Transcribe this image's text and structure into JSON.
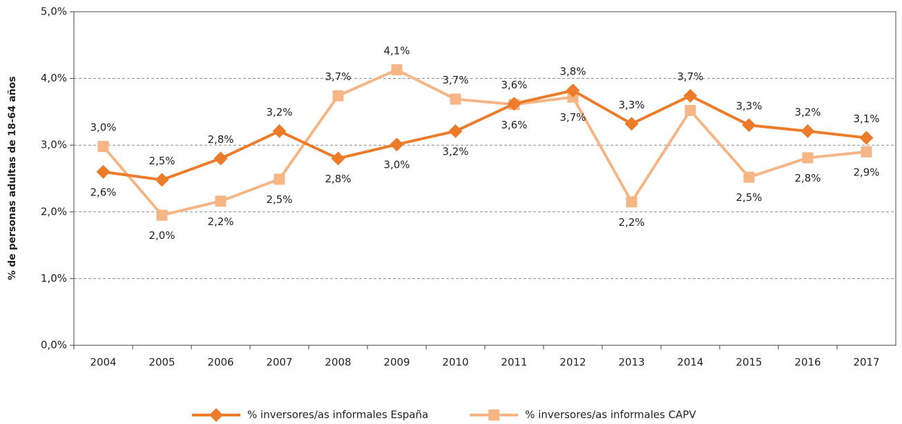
{
  "chart_data": {
    "type": "line",
    "y_label": "% de personas adultas de 18-64 años",
    "categories": [
      "2004",
      "2005",
      "2006",
      "2007",
      "2008",
      "2009",
      "2010",
      "2011",
      "2012",
      "2013",
      "2014",
      "2015",
      "2016",
      "2017"
    ],
    "series": [
      {
        "name": "% inversores/as informales España",
        "color": "#ec7b2a",
        "marker": "diamond",
        "values": [
          2.6,
          2.48,
          2.8,
          3.21,
          2.8,
          3.01,
          3.21,
          3.62,
          3.82,
          3.32,
          3.74,
          3.3,
          3.21,
          3.11
        ],
        "value_labels": [
          "2,6%",
          "2,5%",
          "2,8%",
          "3,2%",
          "2,8%",
          "3,0%",
          "3,2%",
          "3,6%",
          "3,8%",
          "3,3%",
          "3,7%",
          "3,3%",
          "3,2%",
          "3,1%"
        ]
      },
      {
        "name": "% inversores/as informales CAPV",
        "color": "#f6b585",
        "marker": "square",
        "values": [
          2.98,
          1.95,
          2.16,
          2.49,
          3.74,
          4.13,
          3.69,
          3.61,
          3.72,
          2.15,
          3.52,
          2.52,
          2.81,
          2.9
        ],
        "value_labels": [
          "3,0%",
          "2,0%",
          "2,2%",
          "2,5%",
          "3,7%",
          "4,1%",
          "3,7%",
          "3,6%",
          "3,7%",
          "2,2%",
          null,
          "2,5%",
          "2,8%",
          "2,9%"
        ]
      }
    ],
    "ylim": [
      0,
      5
    ],
    "yticks": [
      {
        "value": 0,
        "label": "0,0%"
      },
      {
        "value": 1,
        "label": "1,0%"
      },
      {
        "value": 2,
        "label": "2,0%"
      },
      {
        "value": 3,
        "label": "3,0%"
      },
      {
        "value": 4,
        "label": "4,0%"
      },
      {
        "value": 5,
        "label": "5,0%"
      }
    ],
    "grid": true,
    "legend": "bottom"
  }
}
